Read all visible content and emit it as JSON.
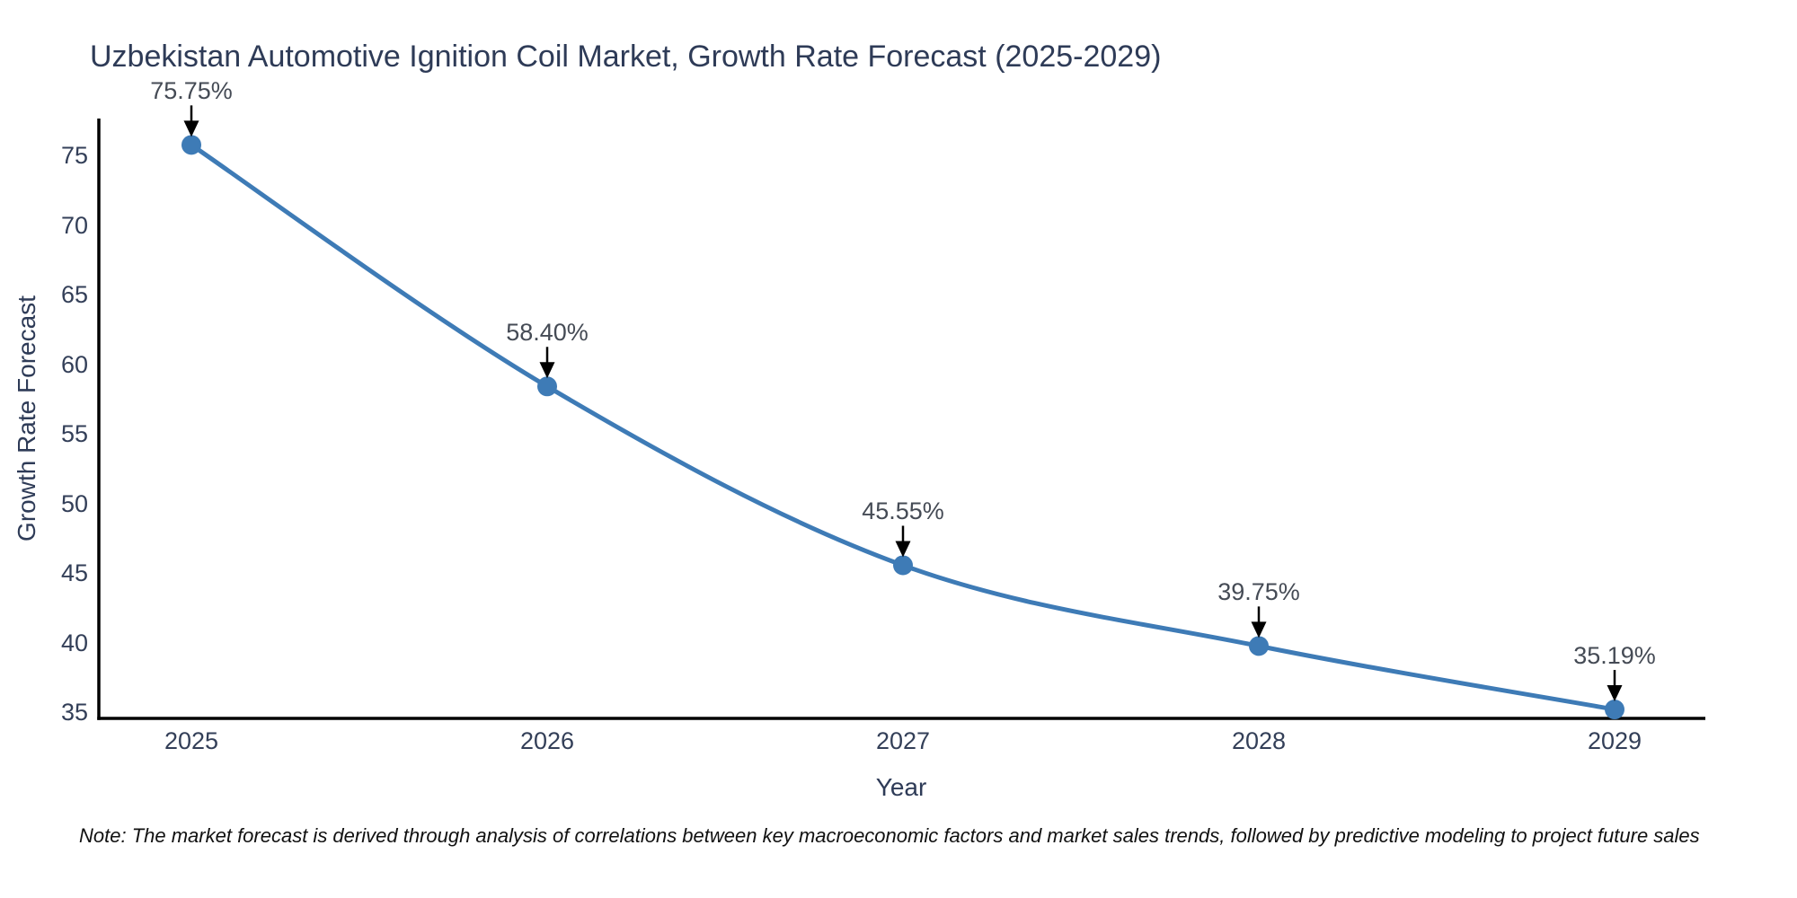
{
  "page": {
    "title": "Uzbekistan Automotive Ignition Coil Market, Growth Rate Forecast (2025-2029)",
    "note": "Note: The market forecast is derived through analysis of correlations between key macroeconomic factors and market sales trends, followed by predictive modeling to project future sales"
  },
  "chart_data": {
    "type": "line",
    "title": "Uzbekistan Automotive Ignition Coil Market, Growth Rate Forecast (2025-2029)",
    "xlabel": "Year",
    "ylabel": "Growth Rate Forecast",
    "categories": [
      "2025",
      "2026",
      "2027",
      "2028",
      "2029"
    ],
    "series": [
      {
        "name": "Growth Rate Forecast",
        "values": [
          75.75,
          58.4,
          45.55,
          39.75,
          35.19
        ],
        "point_labels": [
          "75.75%",
          "58.40%",
          "45.55%",
          "39.75%",
          "35.19%"
        ]
      }
    ],
    "yticks": [
      35,
      40,
      45,
      50,
      55,
      60,
      65,
      70,
      75
    ],
    "ylim": [
      34.5,
      77.6
    ],
    "grid": false,
    "legend_position": "none",
    "annotation_style": "value label with downward black arrow to marker",
    "colors": {
      "line": "#3E7BB6",
      "marker": "#3E7BB6",
      "axis": "#000000",
      "arrow": "#000000",
      "title_text": "#2e3b57",
      "tick_text": "#333f58",
      "annotation_text": "#454b55",
      "note_text": "#111111",
      "background": "#ffffff"
    }
  }
}
